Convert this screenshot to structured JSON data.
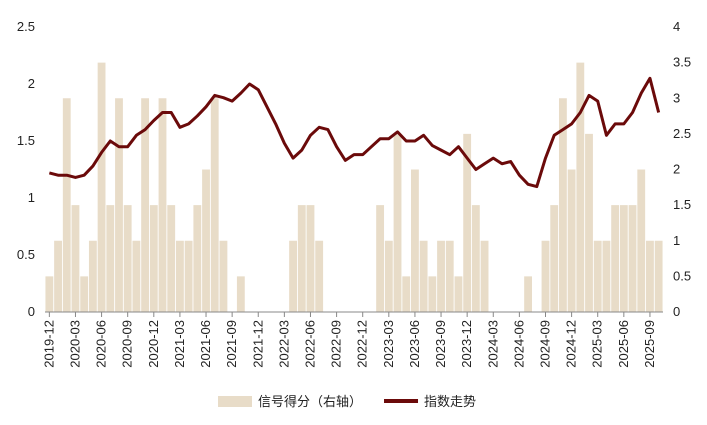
{
  "chart_data": {
    "type": "combo",
    "x": [
      "2019-12",
      "2020-01",
      "2020-02",
      "2020-03",
      "2020-04",
      "2020-05",
      "2020-06",
      "2020-07",
      "2020-08",
      "2020-09",
      "2020-10",
      "2020-11",
      "2020-12",
      "2021-01",
      "2021-02",
      "2021-03",
      "2021-04",
      "2021-05",
      "2021-06",
      "2021-07",
      "2021-08",
      "2021-09",
      "2021-10",
      "2021-11",
      "2021-12",
      "2022-01",
      "2022-02",
      "2022-03",
      "2022-04",
      "2022-05",
      "2022-06",
      "2022-07",
      "2022-08",
      "2022-09",
      "2022-10",
      "2022-11",
      "2022-12",
      "2023-01",
      "2023-02",
      "2023-03",
      "2023-04",
      "2023-05",
      "2023-06",
      "2023-07",
      "2023-08",
      "2023-09",
      "2023-10",
      "2023-11",
      "2023-12",
      "2024-01",
      "2024-02",
      "2024-03",
      "2024-04",
      "2024-05",
      "2024-06",
      "2024-07",
      "2024-08",
      "2024-09",
      "2024-10",
      "2024-11",
      "2024-12",
      "2025-01",
      "2025-02",
      "2025-03",
      "2025-04",
      "2025-05",
      "2025-06",
      "2025-07",
      "2025-08",
      "2025-09",
      "2025-10"
    ],
    "xticks": [
      "2019-12",
      "2020-03",
      "2020-06",
      "2020-09",
      "2020-12",
      "2021-03",
      "2021-06",
      "2021-09",
      "2021-12",
      "2022-03",
      "2022-06",
      "2022-09",
      "2022-12",
      "2023-03",
      "2023-06",
      "2023-09",
      "2023-12",
      "2024-03",
      "2024-06",
      "2024-09",
      "2024-12",
      "2025-03",
      "2025-06",
      "2025-09"
    ],
    "series": [
      {
        "name": "信号得分（右轴）",
        "type": "bar",
        "axis": "y2",
        "color": "#e8dcc8",
        "values": [
          0.5,
          1,
          3,
          1.5,
          0.5,
          1,
          3.5,
          1.5,
          3,
          1.5,
          1,
          3,
          1.5,
          3,
          1.5,
          1,
          1,
          1.5,
          2,
          3,
          1,
          0,
          0.5,
          0,
          0,
          0,
          0,
          0,
          1,
          1.5,
          1.5,
          1,
          0,
          0,
          0,
          0,
          0,
          0,
          1.5,
          1,
          2.5,
          0.5,
          2,
          1,
          0.5,
          1,
          1,
          0.5,
          2.5,
          1.5,
          1,
          0,
          0,
          0,
          0,
          0.5,
          0,
          1,
          1.5,
          3,
          2,
          3.5,
          2.5,
          1,
          1,
          1.5,
          1.5,
          1.5,
          2,
          1,
          1
        ]
      },
      {
        "name": "指数走势",
        "type": "line",
        "color": "#6b0a0a",
        "values": [
          1.22,
          1.2,
          1.2,
          1.18,
          1.2,
          1.28,
          1.4,
          1.5,
          1.45,
          1.45,
          1.55,
          1.6,
          1.68,
          1.75,
          1.75,
          1.62,
          1.65,
          1.72,
          1.8,
          1.9,
          1.88,
          1.85,
          1.92,
          2.0,
          1.95,
          1.8,
          1.65,
          1.48,
          1.35,
          1.42,
          1.55,
          1.62,
          1.6,
          1.45,
          1.33,
          1.38,
          1.38,
          1.45,
          1.52,
          1.52,
          1.58,
          1.5,
          1.5,
          1.55,
          1.46,
          1.42,
          1.38,
          1.45,
          1.35,
          1.25,
          1.3,
          1.35,
          1.3,
          1.32,
          1.2,
          1.12,
          1.1,
          1.35,
          1.55,
          1.6,
          1.65,
          1.75,
          1.9,
          1.85,
          1.55,
          1.65,
          1.65,
          1.75,
          1.92,
          2.05,
          1.75
        ]
      }
    ],
    "ylim": [
      0,
      2.5
    ],
    "yticks": [
      0,
      0.5,
      1,
      1.5,
      2,
      2.5
    ],
    "y2lim": [
      0,
      4
    ],
    "y2ticks": [
      0,
      0.5,
      1,
      1.5,
      2,
      2.5,
      3,
      3.5,
      4
    ]
  }
}
